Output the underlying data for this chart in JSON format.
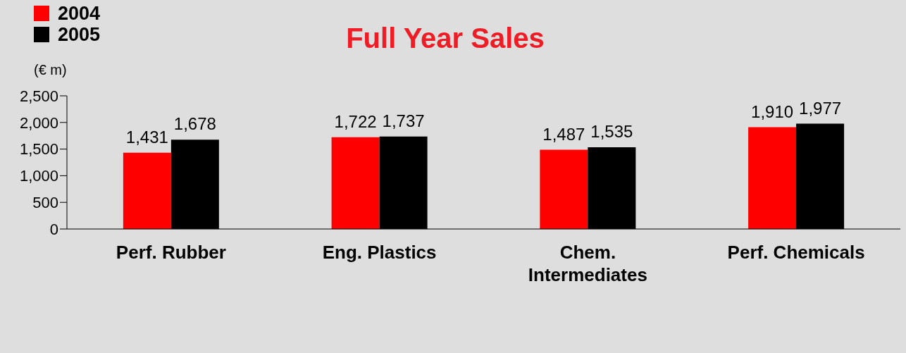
{
  "chart_data": {
    "type": "bar",
    "title": "Full Year Sales",
    "ylabel": "(€ m)",
    "categories": [
      "Perf. Rubber",
      "Eng. Plastics",
      "Chem. Intermediates",
      "Perf. Chemicals"
    ],
    "series": [
      {
        "name": "2004",
        "color": "#ff0000",
        "values": [
          1431,
          1722,
          1487,
          1910
        ],
        "value_labels": [
          "1,431",
          "1,722",
          "1,487",
          "1,910"
        ]
      },
      {
        "name": "2005",
        "color": "#000000",
        "values": [
          1678,
          1737,
          1535,
          1977
        ],
        "value_labels": [
          "1,678",
          "1,737",
          "1,535",
          "1,977"
        ]
      }
    ],
    "ylim": [
      0,
      2500
    ],
    "yticks": [
      {
        "value": 0,
        "label": "0"
      },
      {
        "value": 500,
        "label": "500"
      },
      {
        "value": 1000,
        "label": "1,000"
      },
      {
        "value": 1500,
        "label": "1,500"
      },
      {
        "value": 2000,
        "label": "2,000"
      },
      {
        "value": 2500,
        "label": "2,500"
      }
    ],
    "grid": false,
    "legend": "top left"
  }
}
